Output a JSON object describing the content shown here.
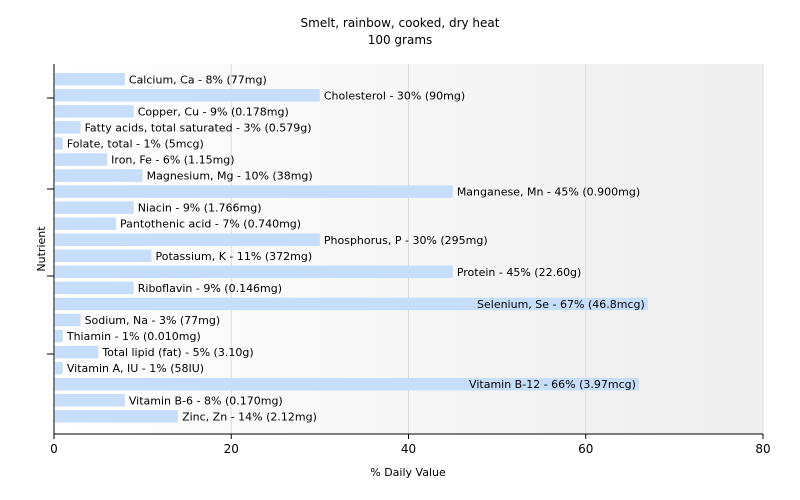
{
  "chart_data": {
    "type": "bar",
    "orientation": "horizontal",
    "title": "Smelt, rainbow, cooked, dry heat",
    "subtitle": "100 grams",
    "xlabel": "% Daily Value",
    "ylabel": "Nutrient",
    "xlim": [
      0,
      80
    ],
    "xticks": [
      0,
      20,
      40,
      60,
      80
    ],
    "grid": true,
    "bar_color": "#c6defa",
    "categories": [
      "Calcium, Ca",
      "Cholesterol",
      "Copper, Cu",
      "Fatty acids, total saturated",
      "Folate, total",
      "Iron, Fe",
      "Magnesium, Mg",
      "Manganese, Mn",
      "Niacin",
      "Pantothenic acid",
      "Phosphorus, P",
      "Potassium, K",
      "Protein",
      "Riboflavin",
      "Selenium, Se",
      "Sodium, Na",
      "Thiamin",
      "Total lipid (fat)",
      "Vitamin A, IU",
      "Vitamin B-12",
      "Vitamin B-6",
      "Zinc, Zn"
    ],
    "values": [
      8,
      30,
      9,
      3,
      1,
      6,
      10,
      45,
      9,
      7,
      30,
      11,
      45,
      9,
      67,
      3,
      1,
      5,
      1,
      66,
      8,
      14
    ],
    "labels": [
      "Calcium, Ca - 8% (77mg)",
      "Cholesterol - 30% (90mg)",
      "Copper, Cu - 9% (0.178mg)",
      "Fatty acids, total saturated - 3% (0.579g)",
      "Folate, total - 1% (5mcg)",
      "Iron, Fe - 6% (1.15mg)",
      "Magnesium, Mg - 10% (38mg)",
      "Manganese, Mn - 45% (0.900mg)",
      "Niacin - 9% (1.766mg)",
      "Pantothenic acid - 7% (0.740mg)",
      "Phosphorus, P - 30% (295mg)",
      "Potassium, K - 11% (372mg)",
      "Protein - 45% (22.60g)",
      "Riboflavin - 9% (0.146mg)",
      "Selenium, Se - 67% (46.8mcg)",
      "Sodium, Na - 3% (77mg)",
      "Thiamin - 1% (0.010mg)",
      "Total lipid (fat) - 5% (3.10g)",
      "Vitamin A, IU - 1% (58IU)",
      "Vitamin B-12 - 66% (3.97mcg)",
      "Vitamin B-6 - 8% (0.170mg)",
      "Zinc, Zn - 14% (2.12mg)"
    ]
  }
}
